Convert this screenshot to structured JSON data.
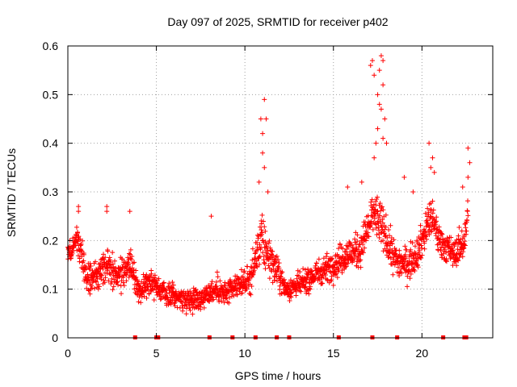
{
  "chart_data": {
    "type": "scatter",
    "title": "Day 097 of 2025, SRMTID for receiver p402",
    "xlabel": "GPS time / hours",
    "ylabel": "SRMTID / TECUs",
    "xlim": [
      0,
      24
    ],
    "ylim": [
      0,
      0.6
    ],
    "xticks": [
      0,
      5,
      10,
      15,
      20
    ],
    "xtick_labels": [
      "0",
      "5",
      "10",
      "15",
      "20"
    ],
    "yticks": [
      0,
      0.1,
      0.2,
      0.3,
      0.4,
      0.5,
      0.6
    ],
    "ytick_labels": [
      "0",
      "0.1",
      "0.2",
      "0.3",
      "0.4",
      "0.5",
      "0.6"
    ],
    "grid": true,
    "marker": "+",
    "color": "#ff0000",
    "series": [
      {
        "name": "SRMTID",
        "trend": [
          {
            "x": 0.0,
            "y": 0.17,
            "spread": 0.04
          },
          {
            "x": 0.5,
            "y": 0.21,
            "spread": 0.05
          },
          {
            "x": 1.0,
            "y": 0.13,
            "spread": 0.05
          },
          {
            "x": 1.5,
            "y": 0.12,
            "spread": 0.05
          },
          {
            "x": 2.2,
            "y": 0.15,
            "spread": 0.06
          },
          {
            "x": 3.0,
            "y": 0.13,
            "spread": 0.06
          },
          {
            "x": 3.6,
            "y": 0.15,
            "spread": 0.06
          },
          {
            "x": 4.0,
            "y": 0.09,
            "spread": 0.04
          },
          {
            "x": 4.6,
            "y": 0.12,
            "spread": 0.05
          },
          {
            "x": 5.5,
            "y": 0.09,
            "spread": 0.04
          },
          {
            "x": 6.5,
            "y": 0.08,
            "spread": 0.04
          },
          {
            "x": 7.5,
            "y": 0.08,
            "spread": 0.04
          },
          {
            "x": 8.2,
            "y": 0.1,
            "spread": 0.05
          },
          {
            "x": 9.0,
            "y": 0.09,
            "spread": 0.04
          },
          {
            "x": 9.7,
            "y": 0.11,
            "spread": 0.04
          },
          {
            "x": 10.3,
            "y": 0.12,
            "spread": 0.05
          },
          {
            "x": 10.9,
            "y": 0.2,
            "spread": 0.09
          },
          {
            "x": 11.5,
            "y": 0.16,
            "spread": 0.06
          },
          {
            "x": 12.3,
            "y": 0.1,
            "spread": 0.04
          },
          {
            "x": 13.2,
            "y": 0.11,
            "spread": 0.04
          },
          {
            "x": 14.0,
            "y": 0.13,
            "spread": 0.05
          },
          {
            "x": 15.0,
            "y": 0.15,
            "spread": 0.05
          },
          {
            "x": 15.7,
            "y": 0.17,
            "spread": 0.06
          },
          {
            "x": 16.5,
            "y": 0.18,
            "spread": 0.06
          },
          {
            "x": 17.3,
            "y": 0.26,
            "spread": 0.08
          },
          {
            "x": 17.8,
            "y": 0.22,
            "spread": 0.08
          },
          {
            "x": 18.5,
            "y": 0.16,
            "spread": 0.06
          },
          {
            "x": 19.2,
            "y": 0.15,
            "spread": 0.06
          },
          {
            "x": 19.8,
            "y": 0.18,
            "spread": 0.06
          },
          {
            "x": 20.5,
            "y": 0.25,
            "spread": 0.07
          },
          {
            "x": 21.0,
            "y": 0.2,
            "spread": 0.06
          },
          {
            "x": 21.8,
            "y": 0.17,
            "spread": 0.05
          },
          {
            "x": 22.4,
            "y": 0.2,
            "spread": 0.06
          },
          {
            "x": 22.6,
            "y": 0.26,
            "spread": 0.06
          }
        ],
        "highlights": [
          {
            "x": 0.6,
            "y": 0.26
          },
          {
            "x": 0.6,
            "y": 0.27
          },
          {
            "x": 2.2,
            "y": 0.26
          },
          {
            "x": 2.2,
            "y": 0.27
          },
          {
            "x": 3.5,
            "y": 0.26
          },
          {
            "x": 8.1,
            "y": 0.25
          },
          {
            "x": 10.9,
            "y": 0.45
          },
          {
            "x": 11.0,
            "y": 0.42
          },
          {
            "x": 11.1,
            "y": 0.49
          },
          {
            "x": 11.2,
            "y": 0.45
          },
          {
            "x": 11.0,
            "y": 0.38
          },
          {
            "x": 11.1,
            "y": 0.35
          },
          {
            "x": 10.8,
            "y": 0.32
          },
          {
            "x": 11.3,
            "y": 0.3
          },
          {
            "x": 17.1,
            "y": 0.56
          },
          {
            "x": 17.2,
            "y": 0.57
          },
          {
            "x": 17.3,
            "y": 0.54
          },
          {
            "x": 17.5,
            "y": 0.5
          },
          {
            "x": 17.7,
            "y": 0.58
          },
          {
            "x": 17.8,
            "y": 0.57
          },
          {
            "x": 17.6,
            "y": 0.55
          },
          {
            "x": 17.8,
            "y": 0.52
          },
          {
            "x": 17.6,
            "y": 0.48
          },
          {
            "x": 17.7,
            "y": 0.47
          },
          {
            "x": 17.9,
            "y": 0.45
          },
          {
            "x": 17.5,
            "y": 0.43
          },
          {
            "x": 17.4,
            "y": 0.4
          },
          {
            "x": 17.8,
            "y": 0.41
          },
          {
            "x": 18.0,
            "y": 0.4
          },
          {
            "x": 17.3,
            "y": 0.37
          },
          {
            "x": 20.4,
            "y": 0.4
          },
          {
            "x": 20.6,
            "y": 0.37
          },
          {
            "x": 20.5,
            "y": 0.35
          },
          {
            "x": 20.7,
            "y": 0.34
          },
          {
            "x": 22.6,
            "y": 0.39
          },
          {
            "x": 22.7,
            "y": 0.36
          },
          {
            "x": 22.6,
            "y": 0.33
          },
          {
            "x": 22.3,
            "y": 0.31
          },
          {
            "x": 15.8,
            "y": 0.31
          },
          {
            "x": 16.6,
            "y": 0.32
          },
          {
            "x": 19.0,
            "y": 0.33
          },
          {
            "x": 19.5,
            "y": 0.3
          }
        ],
        "zero_markers": [
          3.8,
          5.0,
          5.1,
          8.0,
          9.3,
          10.6,
          11.8,
          12.5,
          15.3,
          17.2,
          18.6,
          21.2,
          22.4,
          22.5
        ]
      }
    ]
  }
}
